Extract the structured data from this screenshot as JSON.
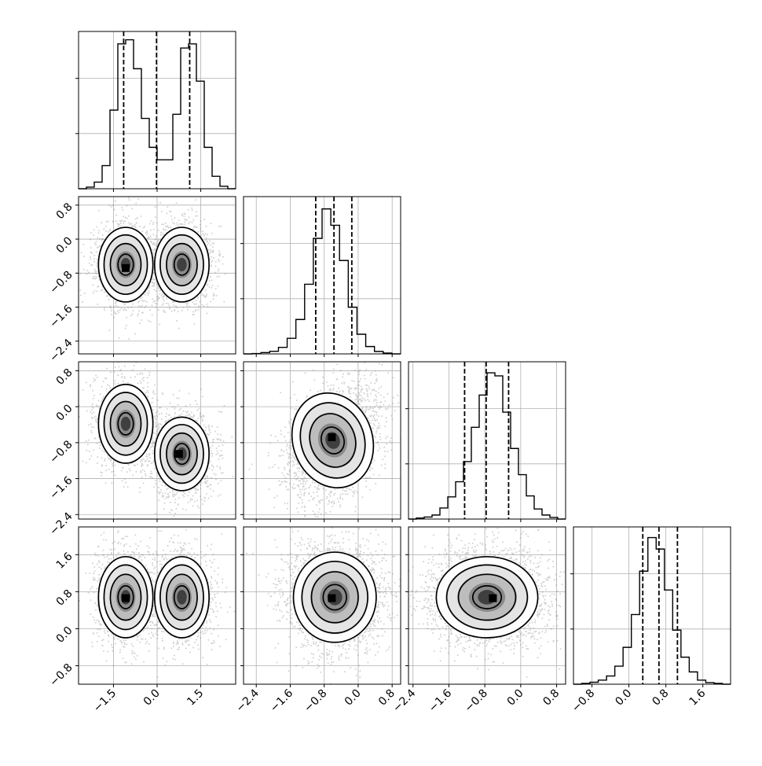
{
  "chart_data": {
    "type": "corner",
    "parameters": [
      "",
      "",
      "",
      ""
    ],
    "diagonal": [
      {
        "kind": "histogram",
        "range": [
          -2.7,
          2.7
        ],
        "counts": [
          0,
          2,
          8,
          28,
          95,
          175,
          180,
          145,
          85,
          50,
          35,
          35,
          90,
          170,
          175,
          130,
          50,
          15,
          3,
          0
        ],
        "ylim": [
          0,
          190
        ],
        "ticks": [
          -1.5,
          0.0,
          1.5
        ],
        "quantiles": [
          -1.15,
          -0.02,
          1.12
        ]
      },
      {
        "kind": "histogram",
        "range": [
          -2.7,
          1.0
        ],
        "counts": [
          0,
          2,
          8,
          16,
          40,
          95,
          210,
          425,
          705,
          885,
          785,
          570,
          285,
          120,
          45,
          15,
          5,
          0
        ],
        "ylim": [
          0,
          960
        ],
        "ticks": [
          -2.4,
          -1.6,
          -0.8,
          0.0,
          0.8
        ],
        "quantiles": [
          -1.0,
          -0.57,
          -0.15
        ]
      },
      {
        "kind": "histogram",
        "range": [
          -2.5,
          1.0
        ],
        "counts": [
          0,
          5,
          10,
          20,
          55,
          110,
          185,
          285,
          455,
          615,
          725,
          710,
          530,
          350,
          220,
          115,
          50,
          20,
          8,
          0
        ],
        "ylim": [
          0,
          780
        ],
        "ticks": [
          -2.4,
          -1.6,
          -0.8,
          0.0,
          0.8
        ],
        "quantiles": [
          -1.25,
          -0.77,
          -0.27
        ]
      },
      {
        "kind": "histogram",
        "range": [
          -1.2,
          2.2
        ],
        "counts": [
          0,
          5,
          12,
          25,
          50,
          110,
          225,
          425,
          690,
          895,
          825,
          575,
          330,
          165,
          75,
          25,
          10,
          5,
          0
        ],
        "ylim": [
          0,
          960
        ],
        "ticks": [
          -0.8,
          0.0,
          0.8,
          1.6
        ],
        "quantiles": [
          0.3,
          0.65,
          1.05
        ]
      }
    ],
    "offdiagonal": [
      {
        "row": 1,
        "col": 0,
        "xlim": [
          -2.7,
          2.7
        ],
        "ylim": [
          -2.7,
          1.0
        ],
        "xticks": [
          -1.5,
          0.0,
          1.5
        ],
        "yticks": [
          -2.4,
          -1.6,
          -0.8,
          0.0,
          0.8
        ],
        "modes": [
          {
            "x": -1.08,
            "y": -0.6,
            "sx": 0.48,
            "sy": 0.45,
            "w": 0.5
          },
          {
            "x": 0.85,
            "y": -0.6,
            "sx": 0.48,
            "sy": 0.45,
            "w": 0.5
          }
        ],
        "peak": [
          -1.08,
          -0.68
        ]
      },
      {
        "row": 2,
        "col": 0,
        "xlim": [
          -2.7,
          2.7
        ],
        "ylim": [
          -2.5,
          1.0
        ],
        "xticks": [
          -1.5,
          0.0,
          1.5
        ],
        "yticks": [
          -2.4,
          -1.6,
          -0.8,
          0.0,
          0.8
        ],
        "modes": [
          {
            "x": -1.08,
            "y": -0.38,
            "sx": 0.48,
            "sy": 0.45,
            "w": 0.5
          },
          {
            "x": 0.85,
            "y": -1.05,
            "sx": 0.48,
            "sy": 0.42,
            "w": 0.5
          }
        ],
        "peak": [
          0.75,
          -1.05
        ]
      },
      {
        "row": 2,
        "col": 1,
        "xlim": [
          -2.7,
          1.0
        ],
        "ylim": [
          -2.5,
          1.0
        ],
        "xticks": [
          -2.4,
          -1.6,
          -0.8,
          0.0,
          0.8
        ],
        "yticks": [
          -2.4,
          -1.6,
          -0.8,
          0.0,
          0.8
        ],
        "modes": [
          {
            "x": -0.6,
            "y": -0.75,
            "sx": 0.48,
            "sy": 0.55,
            "w": 1.0,
            "rho": 0.35
          }
        ],
        "peak": [
          -0.62,
          -0.68
        ]
      },
      {
        "row": 3,
        "col": 0,
        "xlim": [
          -2.7,
          2.7
        ],
        "ylim": [
          -1.2,
          2.2
        ],
        "xticks": [
          -1.5,
          0.0,
          1.5
        ],
        "yticks": [
          -0.8,
          0.0,
          0.8,
          1.6
        ],
        "modes": [
          {
            "x": -1.08,
            "y": 0.68,
            "sx": 0.48,
            "sy": 0.45,
            "w": 0.5
          },
          {
            "x": 0.85,
            "y": 0.68,
            "sx": 0.48,
            "sy": 0.45,
            "w": 0.5
          }
        ],
        "peak": [
          -1.08,
          0.66
        ]
      },
      {
        "row": 3,
        "col": 1,
        "xlim": [
          -2.7,
          1.0
        ],
        "ylim": [
          -1.2,
          2.2
        ],
        "xticks": [
          -2.4,
          -1.6,
          -0.8,
          0.0,
          0.8
        ],
        "yticks": [
          -0.8,
          0.0,
          0.8,
          1.6
        ],
        "modes": [
          {
            "x": -0.55,
            "y": 0.68,
            "sx": 0.5,
            "sy": 0.5,
            "w": 1.0
          }
        ],
        "peak": [
          -0.62,
          0.66
        ]
      },
      {
        "row": 3,
        "col": 2,
        "xlim": [
          -2.5,
          1.0
        ],
        "ylim": [
          -1.2,
          2.2
        ],
        "xticks": [
          -2.4,
          -1.6,
          -0.8,
          0.0,
          0.8
        ],
        "yticks": [
          -0.8,
          0.0,
          0.8,
          1.6
        ],
        "modes": [
          {
            "x": -0.75,
            "y": 0.68,
            "sx": 0.58,
            "sy": 0.45,
            "w": 1.0
          }
        ],
        "peak": [
          -0.62,
          0.66
        ]
      }
    ],
    "grid": true,
    "colors": {
      "line": "#000000",
      "grid": "#b0b0b0",
      "scatter": "#7f7f7f",
      "density": "#3f3f3f"
    }
  }
}
